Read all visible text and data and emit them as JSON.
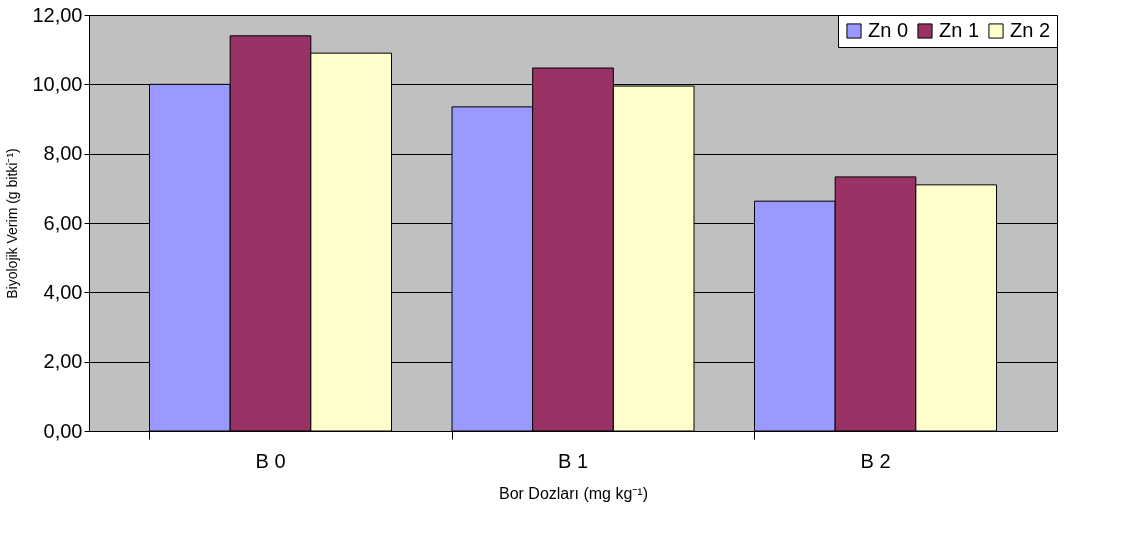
{
  "chart_data": {
    "type": "bar",
    "xlabel": "Bor Dozları (mg kg⁻¹)",
    "ylabel": "Biyolojik Verim (g bitki⁻¹)",
    "categories": [
      "B 0",
      "B 1",
      "B 2"
    ],
    "series": [
      {
        "name": "Zn 0",
        "color": "#9999ff",
        "values": [
          10.0,
          9.35,
          6.63
        ]
      },
      {
        "name": "Zn 1",
        "color": "#993366",
        "values": [
          11.4,
          10.47,
          7.33
        ]
      },
      {
        "name": "Zn 2",
        "color": "#ffffcc",
        "values": [
          10.9,
          9.95,
          7.1
        ]
      }
    ],
    "ylim": [
      0,
      12
    ],
    "yticks": [
      {
        "value": 0,
        "label": "0,00"
      },
      {
        "value": 2,
        "label": "2,00"
      },
      {
        "value": 4,
        "label": "4,00"
      },
      {
        "value": 6,
        "label": "6,00"
      },
      {
        "value": 8,
        "label": "8,00"
      },
      {
        "value": 10,
        "label": "10,00"
      },
      {
        "value": 12,
        "label": "12,00"
      }
    ],
    "grid": "y",
    "legend": "top right"
  }
}
